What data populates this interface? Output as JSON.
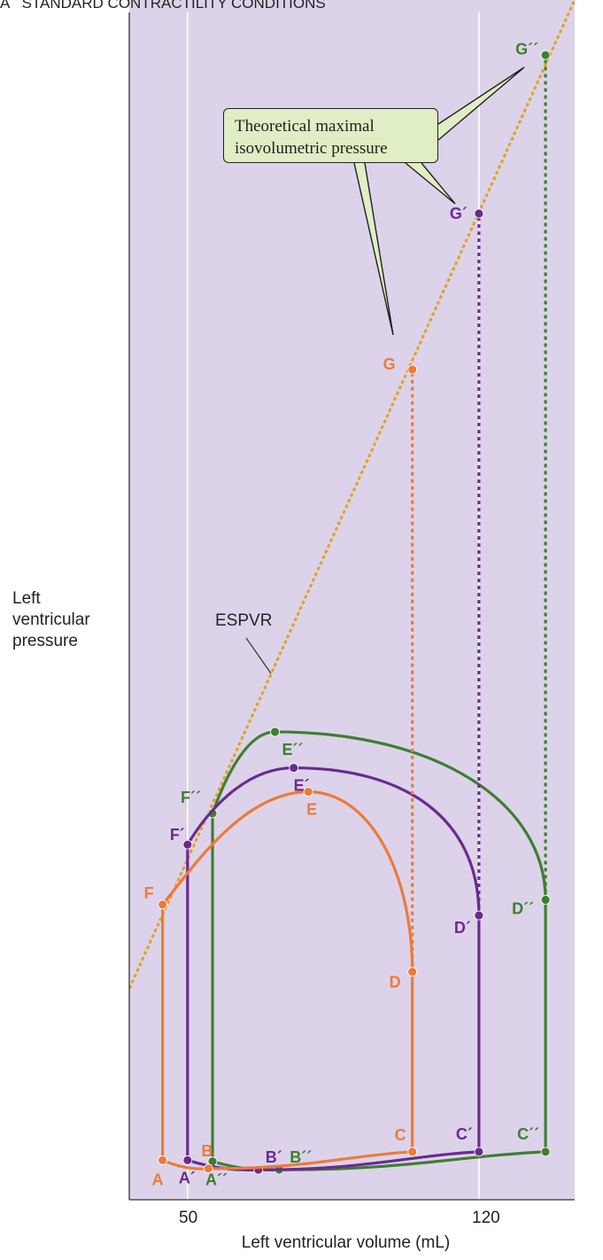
{
  "panel_title": "A   STANDARD CONTRACTILITY CONDITIONS",
  "chart_data": {
    "type": "line",
    "title": "STANDARD CONTRACTILITY CONDITIONS",
    "xlabel": "Left ventricular volume (mL)",
    "ylabel_lines": [
      "Left",
      "ventricular",
      "pressure"
    ],
    "x_ticks": [
      50,
      120
    ],
    "xlim": [
      36,
      143
    ],
    "ylim": [
      0,
      100
    ],
    "grid": "vertical lines at x ticks",
    "colors": {
      "orange": "#ee7a37",
      "purple": "#6a2a91",
      "green": "#3d7f2f",
      "panel": "#dcd3ea",
      "espvr": "#e2a21f"
    },
    "espvr": {
      "label": "ESPVR",
      "x": [
        36,
        143
      ],
      "y": [
        17.6,
        100
      ]
    },
    "callout_lines": [
      "Theoretical maximal",
      "isovolumetric pressure"
    ],
    "series": [
      {
        "color_key": "orange",
        "points": [
          {
            "label": "A",
            "x": 44,
            "y": 3.3
          },
          {
            "label": "B",
            "x": 55,
            "y": 2.6
          },
          {
            "label": "C",
            "x": 104,
            "y": 4
          },
          {
            "label": "D",
            "x": 104,
            "y": 19
          },
          {
            "label": "E",
            "x": 79,
            "y": 34
          },
          {
            "label": "F",
            "x": 44,
            "y": 24.6
          },
          {
            "label": "G",
            "x": 104,
            "y": 69.2
          }
        ]
      },
      {
        "color_key": "purple",
        "points": [
          {
            "label": "A´",
            "x": 50,
            "y": 3.3
          },
          {
            "label": "B´",
            "x": 67,
            "y": 2.5
          },
          {
            "label": "C´",
            "x": 120,
            "y": 4
          },
          {
            "label": "D´",
            "x": 120,
            "y": 23.7
          },
          {
            "label": "E´",
            "x": 75.5,
            "y": 36
          },
          {
            "label": "F´",
            "x": 50,
            "y": 29.6
          },
          {
            "label": "G´",
            "x": 120,
            "y": 82.2
          }
        ]
      },
      {
        "color_key": "green",
        "points": [
          {
            "label": "A´´",
            "x": 56,
            "y": 3.2
          },
          {
            "label": "B´´",
            "x": 72,
            "y": 2.5
          },
          {
            "label": "C´´",
            "x": 136,
            "y": 4
          },
          {
            "label": "D´´",
            "x": 136,
            "y": 25
          },
          {
            "label": "E´´",
            "x": 71,
            "y": 39
          },
          {
            "label": "F´´",
            "x": 56,
            "y": 32.2
          },
          {
            "label": "G´´",
            "x": 136,
            "y": 95.4
          }
        ]
      }
    ]
  }
}
